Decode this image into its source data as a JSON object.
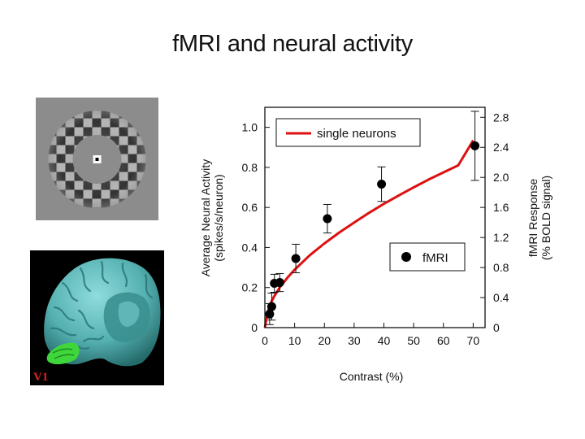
{
  "slide": {
    "title": "fMRI and neural activity"
  },
  "brain_label": "V1",
  "colors": {
    "curve": "#dd1111",
    "points": "#000000",
    "v1_region": "#3fd63c",
    "brain_surface": "#5fb9b9"
  },
  "chart_data": {
    "type": "scatter",
    "xlabel": "Contrast (%)",
    "ylabel_left": [
      "Average Neural Activity",
      "(spikes/s/neuron)"
    ],
    "ylabel_right": [
      "fMRI Response",
      "(% BOLD signal)"
    ],
    "xlim": [
      0,
      74
    ],
    "ylim_left": [
      0,
      1.1
    ],
    "ylim_right": [
      0,
      2.933
    ],
    "x_ticks": [
      "0",
      "10",
      "20",
      "30",
      "40",
      "50",
      "60",
      "70"
    ],
    "y_ticks_left": [
      "0",
      "0.2",
      "0.4",
      "0.6",
      "0.8",
      "1.0"
    ],
    "y_ticks_right": [
      "0",
      "0.4",
      "0.8",
      "1.2",
      "1.6",
      "2.0",
      "2.4",
      "2.8"
    ],
    "series": [
      {
        "name": "single neurons",
        "kind": "line",
        "axis": "left",
        "x": [
          0,
          1,
          2,
          3,
          5,
          7.5,
          10,
          15,
          20,
          25,
          30,
          35,
          40,
          45,
          50,
          55,
          60,
          65,
          70
        ],
        "y": [
          0,
          0.082,
          0.122,
          0.153,
          0.201,
          0.248,
          0.289,
          0.36,
          0.42,
          0.475,
          0.525,
          0.573,
          0.618,
          0.66,
          0.7,
          0.739,
          0.775,
          0.81,
          0.935
        ]
      },
      {
        "name": "fMRI",
        "kind": "points",
        "axis": "right",
        "x": [
          1.6,
          2.3,
          3.2,
          5.0,
          10.4,
          21.0,
          39.2,
          70.6
        ],
        "y": [
          0.18,
          0.28,
          0.59,
          0.6,
          0.92,
          1.45,
          1.91,
          2.42
        ],
        "err": [
          0.14,
          0.18,
          0.12,
          0.12,
          0.19,
          0.19,
          0.23,
          0.46
        ]
      }
    ],
    "legend": [
      "top-left",
      "lower-right"
    ]
  }
}
